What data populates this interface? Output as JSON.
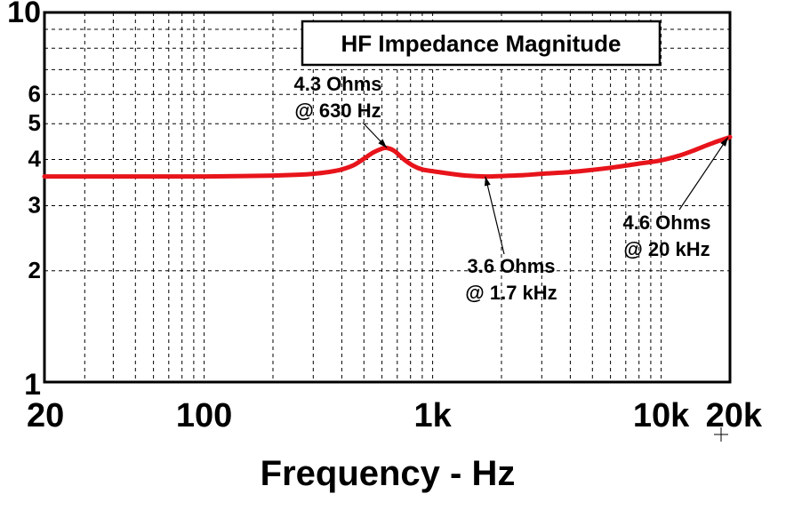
{
  "chart_data": {
    "type": "line",
    "title": "HF Impedance Magnitude",
    "xlabel": "Frequency - Hz",
    "ylabel": "",
    "x_scale": "log",
    "y_scale": "log",
    "xlim": [
      20,
      20000
    ],
    "ylim": [
      1,
      10
    ],
    "grid": true,
    "x_tick_labels": [
      {
        "value": 20,
        "label": "20"
      },
      {
        "value": 100,
        "label": "100"
      },
      {
        "value": 1000,
        "label": "1k"
      },
      {
        "value": 10000,
        "label": "10k"
      },
      {
        "value": 20000,
        "label": "20k"
      }
    ],
    "y_tick_labels": [
      {
        "value": 1,
        "label": "1"
      },
      {
        "value": 2,
        "label": "2"
      },
      {
        "value": 3,
        "label": "3"
      },
      {
        "value": 4,
        "label": "4"
      },
      {
        "value": 5,
        "label": "5"
      },
      {
        "value": 6,
        "label": "6"
      },
      {
        "value": 10,
        "label": "10"
      }
    ],
    "series": [
      {
        "color": "#e8141b",
        "x": [
          20,
          40,
          60,
          100,
          150,
          200,
          260,
          300,
          350,
          400,
          450,
          500,
          550,
          600,
          630,
          680,
          750,
          820,
          900,
          1000,
          1200,
          1400,
          1700,
          2000,
          2500,
          3000,
          4000,
          5000,
          6000,
          7000,
          8000,
          10000,
          12000,
          14000,
          16000,
          18000,
          20000
        ],
        "y": [
          3.6,
          3.6,
          3.6,
          3.6,
          3.61,
          3.62,
          3.64,
          3.66,
          3.7,
          3.76,
          3.86,
          4.02,
          4.18,
          4.28,
          4.3,
          4.22,
          4.0,
          3.85,
          3.76,
          3.72,
          3.66,
          3.62,
          3.6,
          3.61,
          3.63,
          3.66,
          3.7,
          3.75,
          3.8,
          3.85,
          3.9,
          3.98,
          4.1,
          4.24,
          4.38,
          4.5,
          4.6
        ]
      }
    ],
    "annotations": [
      {
        "text_line1": "4.3 Ohms",
        "text_line2": "@ 630 Hz",
        "x": 630,
        "y": 4.3
      },
      {
        "text_line1": "3.6 Ohms",
        "text_line2": "@ 1.7 kHz",
        "x": 1700,
        "y": 3.6
      },
      {
        "text_line1": "4.6 Ohms",
        "text_line2": "@ 20 kHz",
        "x": 20000,
        "y": 4.6
      }
    ]
  }
}
